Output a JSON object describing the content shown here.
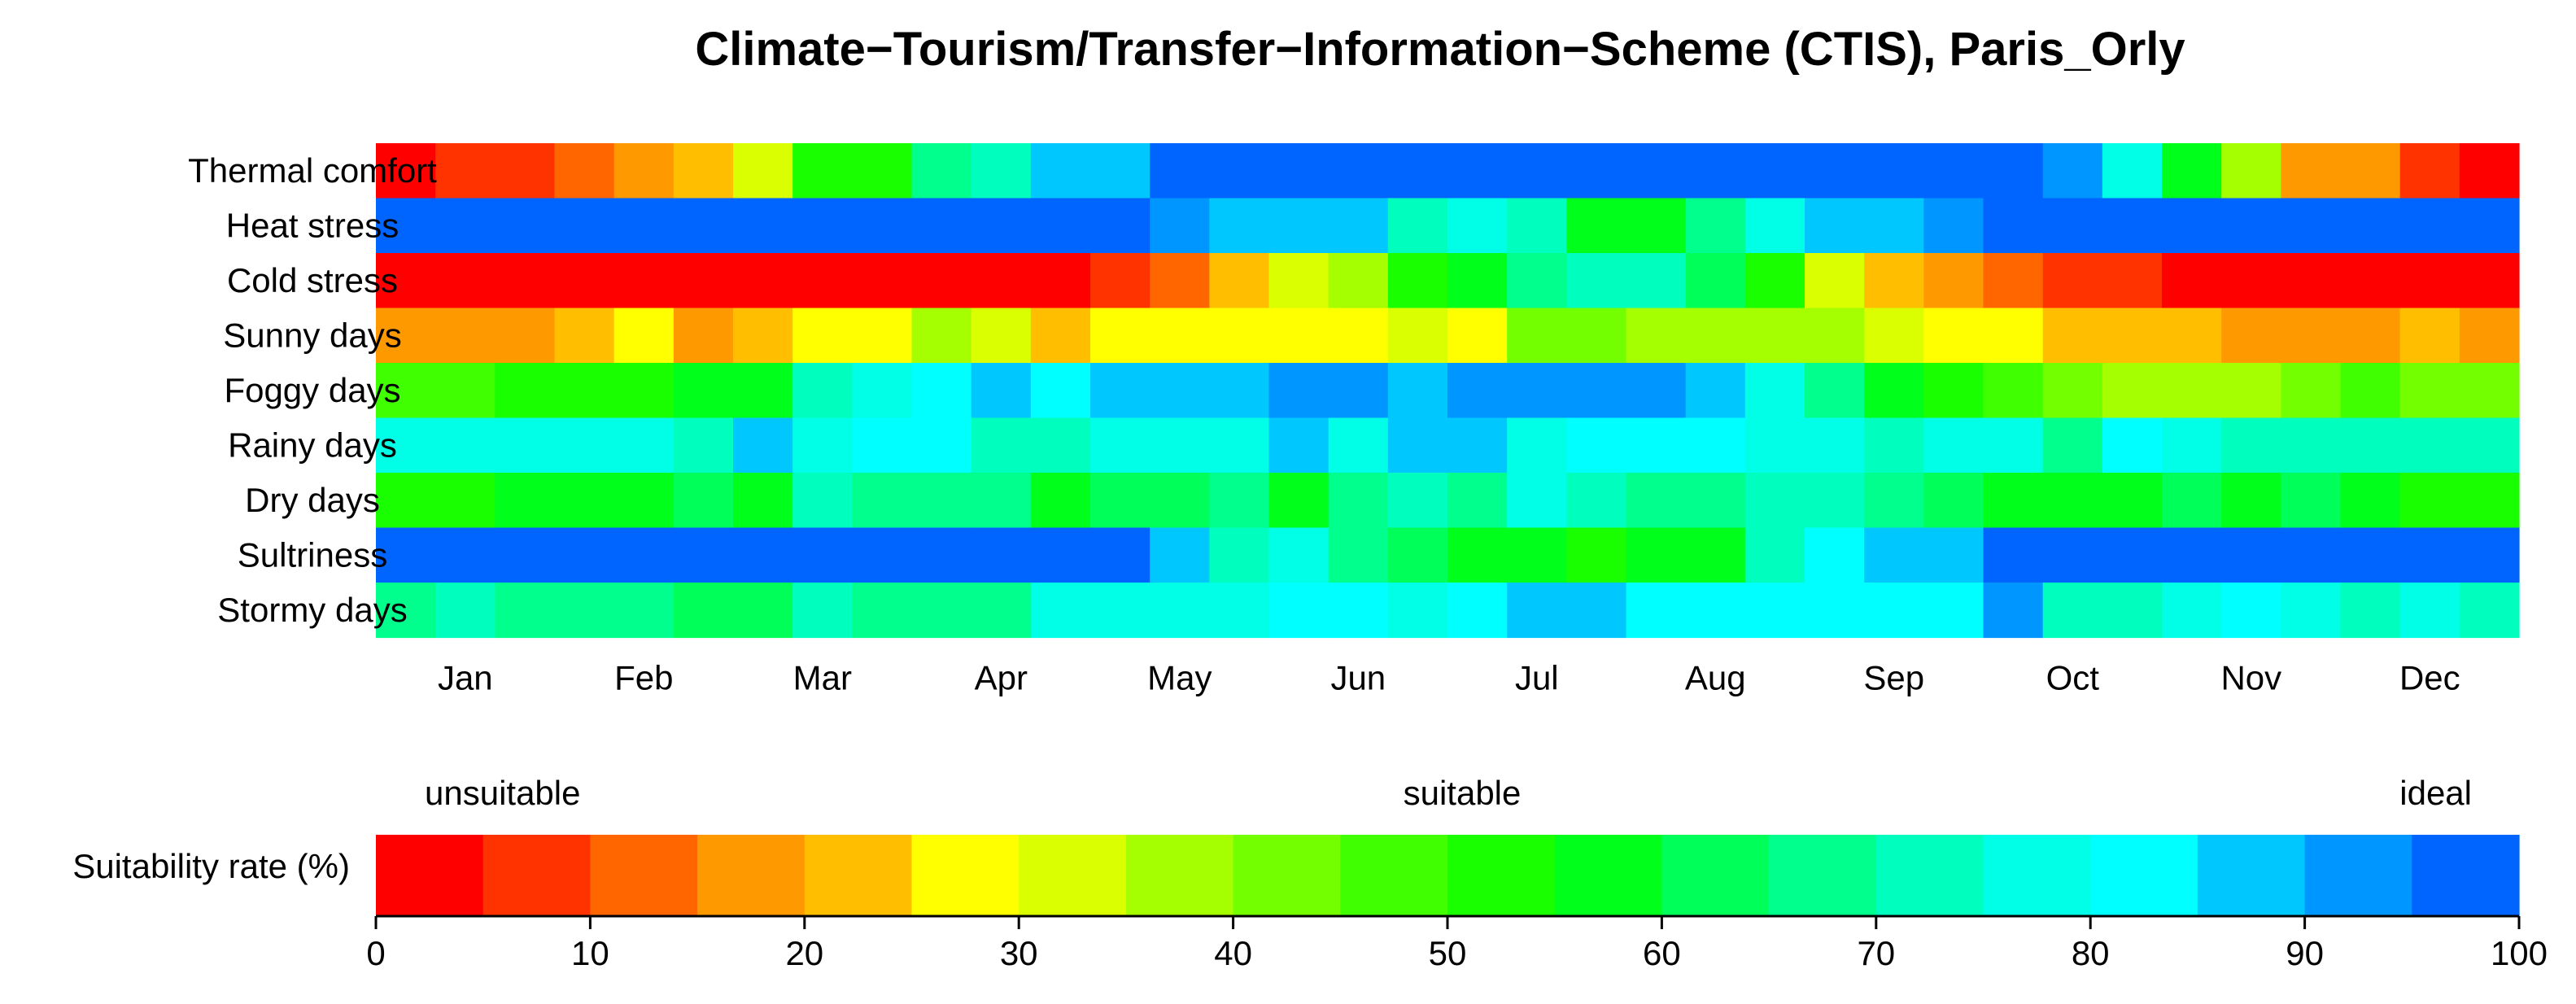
{
  "chart_data": [
    {
      "type": "heatmap",
      "title": "Climate−Tourism/Transfer−Information−Scheme (CTIS), Paris_Orly",
      "rows": [
        "Thermal comfort",
        "Heat stress",
        "Cold stress",
        "Sunny days",
        "Foggy days",
        "Rainy days",
        "Dry days",
        "Sultriness",
        "Stormy days"
      ],
      "months": [
        "Jan",
        "Feb",
        "Mar",
        "Apr",
        "May",
        "Jun",
        "Jul",
        "Aug",
        "Sep",
        "Oct",
        "Nov",
        "Dec"
      ],
      "periods_per_month": 3,
      "value_unit": "Suitability rate (%)",
      "values": [
        [
          2,
          7,
          7,
          12,
          17,
          22,
          32,
          52,
          52,
          67,
          72,
          87,
          87,
          97,
          97,
          97,
          97,
          97,
          97,
          97,
          97,
          97,
          97,
          97,
          97,
          97,
          97,
          97,
          92,
          77,
          57,
          37,
          17,
          17,
          7,
          2
        ],
        [
          97,
          97,
          97,
          97,
          97,
          97,
          97,
          97,
          97,
          97,
          97,
          97,
          97,
          92,
          87,
          87,
          87,
          72,
          77,
          72,
          57,
          57,
          67,
          77,
          87,
          87,
          92,
          97,
          97,
          97,
          97,
          97,
          97,
          97,
          97,
          97
        ],
        [
          2,
          2,
          2,
          2,
          2,
          2,
          2,
          2,
          2,
          2,
          2,
          2,
          7,
          12,
          22,
          32,
          37,
          52,
          57,
          67,
          72,
          72,
          62,
          52,
          32,
          22,
          17,
          12,
          7,
          7,
          2,
          2,
          2,
          2,
          2,
          2
        ],
        [
          17,
          17,
          17,
          22,
          27,
          17,
          22,
          27,
          27,
          37,
          32,
          22,
          27,
          27,
          27,
          27,
          27,
          32,
          27,
          42,
          42,
          37,
          37,
          37,
          37,
          32,
          27,
          27,
          22,
          22,
          22,
          17,
          17,
          17,
          22,
          17
        ],
        [
          47,
          47,
          52,
          52,
          52,
          57,
          57,
          72,
          77,
          82,
          87,
          82,
          87,
          87,
          87,
          92,
          92,
          87,
          92,
          92,
          92,
          92,
          87,
          77,
          67,
          57,
          52,
          47,
          42,
          37,
          37,
          37,
          42,
          47,
          42,
          42
        ],
        [
          77,
          77,
          77,
          77,
          77,
          72,
          87,
          77,
          82,
          82,
          72,
          72,
          77,
          77,
          77,
          87,
          77,
          87,
          87,
          77,
          82,
          82,
          82,
          77,
          77,
          72,
          77,
          77,
          67,
          82,
          77,
          72,
          72,
          72,
          72,
          72
        ],
        [
          52,
          52,
          57,
          57,
          57,
          62,
          57,
          72,
          67,
          67,
          67,
          57,
          62,
          62,
          67,
          57,
          67,
          72,
          67,
          77,
          72,
          67,
          67,
          72,
          72,
          67,
          62,
          57,
          57,
          57,
          62,
          57,
          62,
          57,
          52,
          52
        ],
        [
          97,
          97,
          97,
          97,
          97,
          97,
          97,
          97,
          97,
          97,
          97,
          97,
          97,
          87,
          72,
          77,
          67,
          62,
          57,
          57,
          52,
          57,
          57,
          72,
          82,
          87,
          87,
          97,
          97,
          97,
          97,
          97,
          97,
          97,
          97,
          97
        ],
        [
          67,
          72,
          67,
          67,
          67,
          62,
          62,
          72,
          67,
          67,
          67,
          77,
          77,
          77,
          77,
          82,
          82,
          77,
          82,
          87,
          87,
          82,
          82,
          82,
          82,
          82,
          82,
          92,
          72,
          72,
          77,
          82,
          77,
          72,
          77,
          72
        ]
      ]
    },
    {
      "type": "colorbar",
      "label": "Suitability rate (%)",
      "categories": [
        "unsuitable",
        "suitable",
        "ideal"
      ],
      "ticks": [
        "0",
        "10",
        "20",
        "30",
        "40",
        "50",
        "60",
        "70",
        "80",
        "90",
        "100"
      ],
      "range": [
        0,
        100
      ],
      "bin_width": 5,
      "colors": [
        "#ff0000",
        "#ff3300",
        "#ff6600",
        "#ff9900",
        "#ffbf00",
        "#ffff00",
        "#d9ff00",
        "#a6ff00",
        "#73ff00",
        "#40ff00",
        "#1aff00",
        "#00ff1a",
        "#00ff59",
        "#00ff8c",
        "#00ffbf",
        "#00ffe6",
        "#00ffff",
        "#00c8ff",
        "#0096ff",
        "#0064ff"
      ]
    }
  ]
}
